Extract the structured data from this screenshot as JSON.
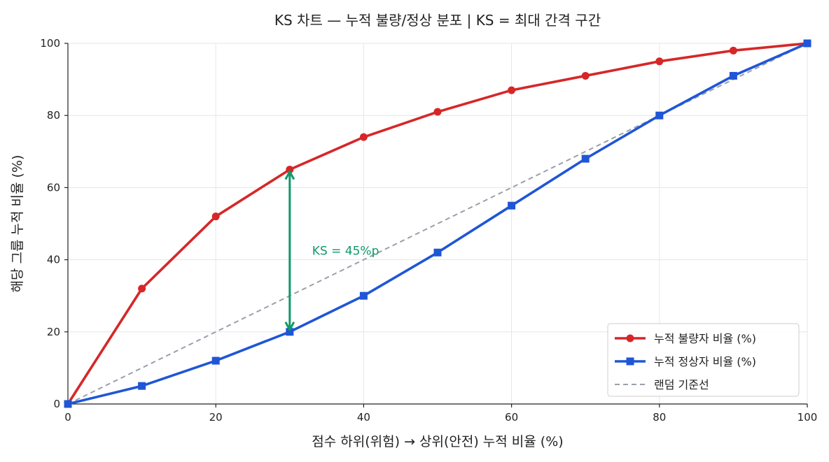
{
  "chart_data": {
    "type": "line",
    "title": "KS 차트 — 누적 불량/정상 분포 | KS = 최대 간격 구간",
    "xlabel": "점수 하위(위험) → 상위(안전) 누적 비율 (%)",
    "ylabel": "해당 그룹 누적 비율 (%)",
    "xlim": [
      0,
      100
    ],
    "ylim": [
      0,
      100
    ],
    "x_ticks": [
      0,
      20,
      40,
      60,
      80,
      100
    ],
    "y_ticks": [
      0,
      20,
      40,
      60,
      80,
      100
    ],
    "grid": true,
    "legend_position": "bottom-right",
    "x": [
      0,
      10,
      20,
      30,
      40,
      50,
      60,
      70,
      80,
      90,
      100
    ],
    "series": [
      {
        "name": "누적 불량자 비율 (%)",
        "values": [
          0,
          32,
          52,
          65,
          74,
          81,
          87,
          91,
          95,
          98,
          100
        ],
        "color": "#d62728",
        "marker": "circle",
        "style": "solid"
      },
      {
        "name": "누적 정상자 비율 (%)",
        "values": [
          0,
          5,
          12,
          20,
          30,
          42,
          55,
          68,
          80,
          91,
          100
        ],
        "color": "#1f56d6",
        "marker": "square",
        "style": "solid"
      },
      {
        "name": "랜덤 기준선",
        "values": [
          0,
          10,
          20,
          30,
          40,
          50,
          60,
          70,
          80,
          90,
          100
        ],
        "color": "#9aa0ab",
        "marker": "none",
        "style": "dashed"
      }
    ],
    "annotation": {
      "text": "KS = 45%p",
      "x": 30,
      "y_from": 20,
      "y_to": 65,
      "color": "#0f9968"
    }
  }
}
